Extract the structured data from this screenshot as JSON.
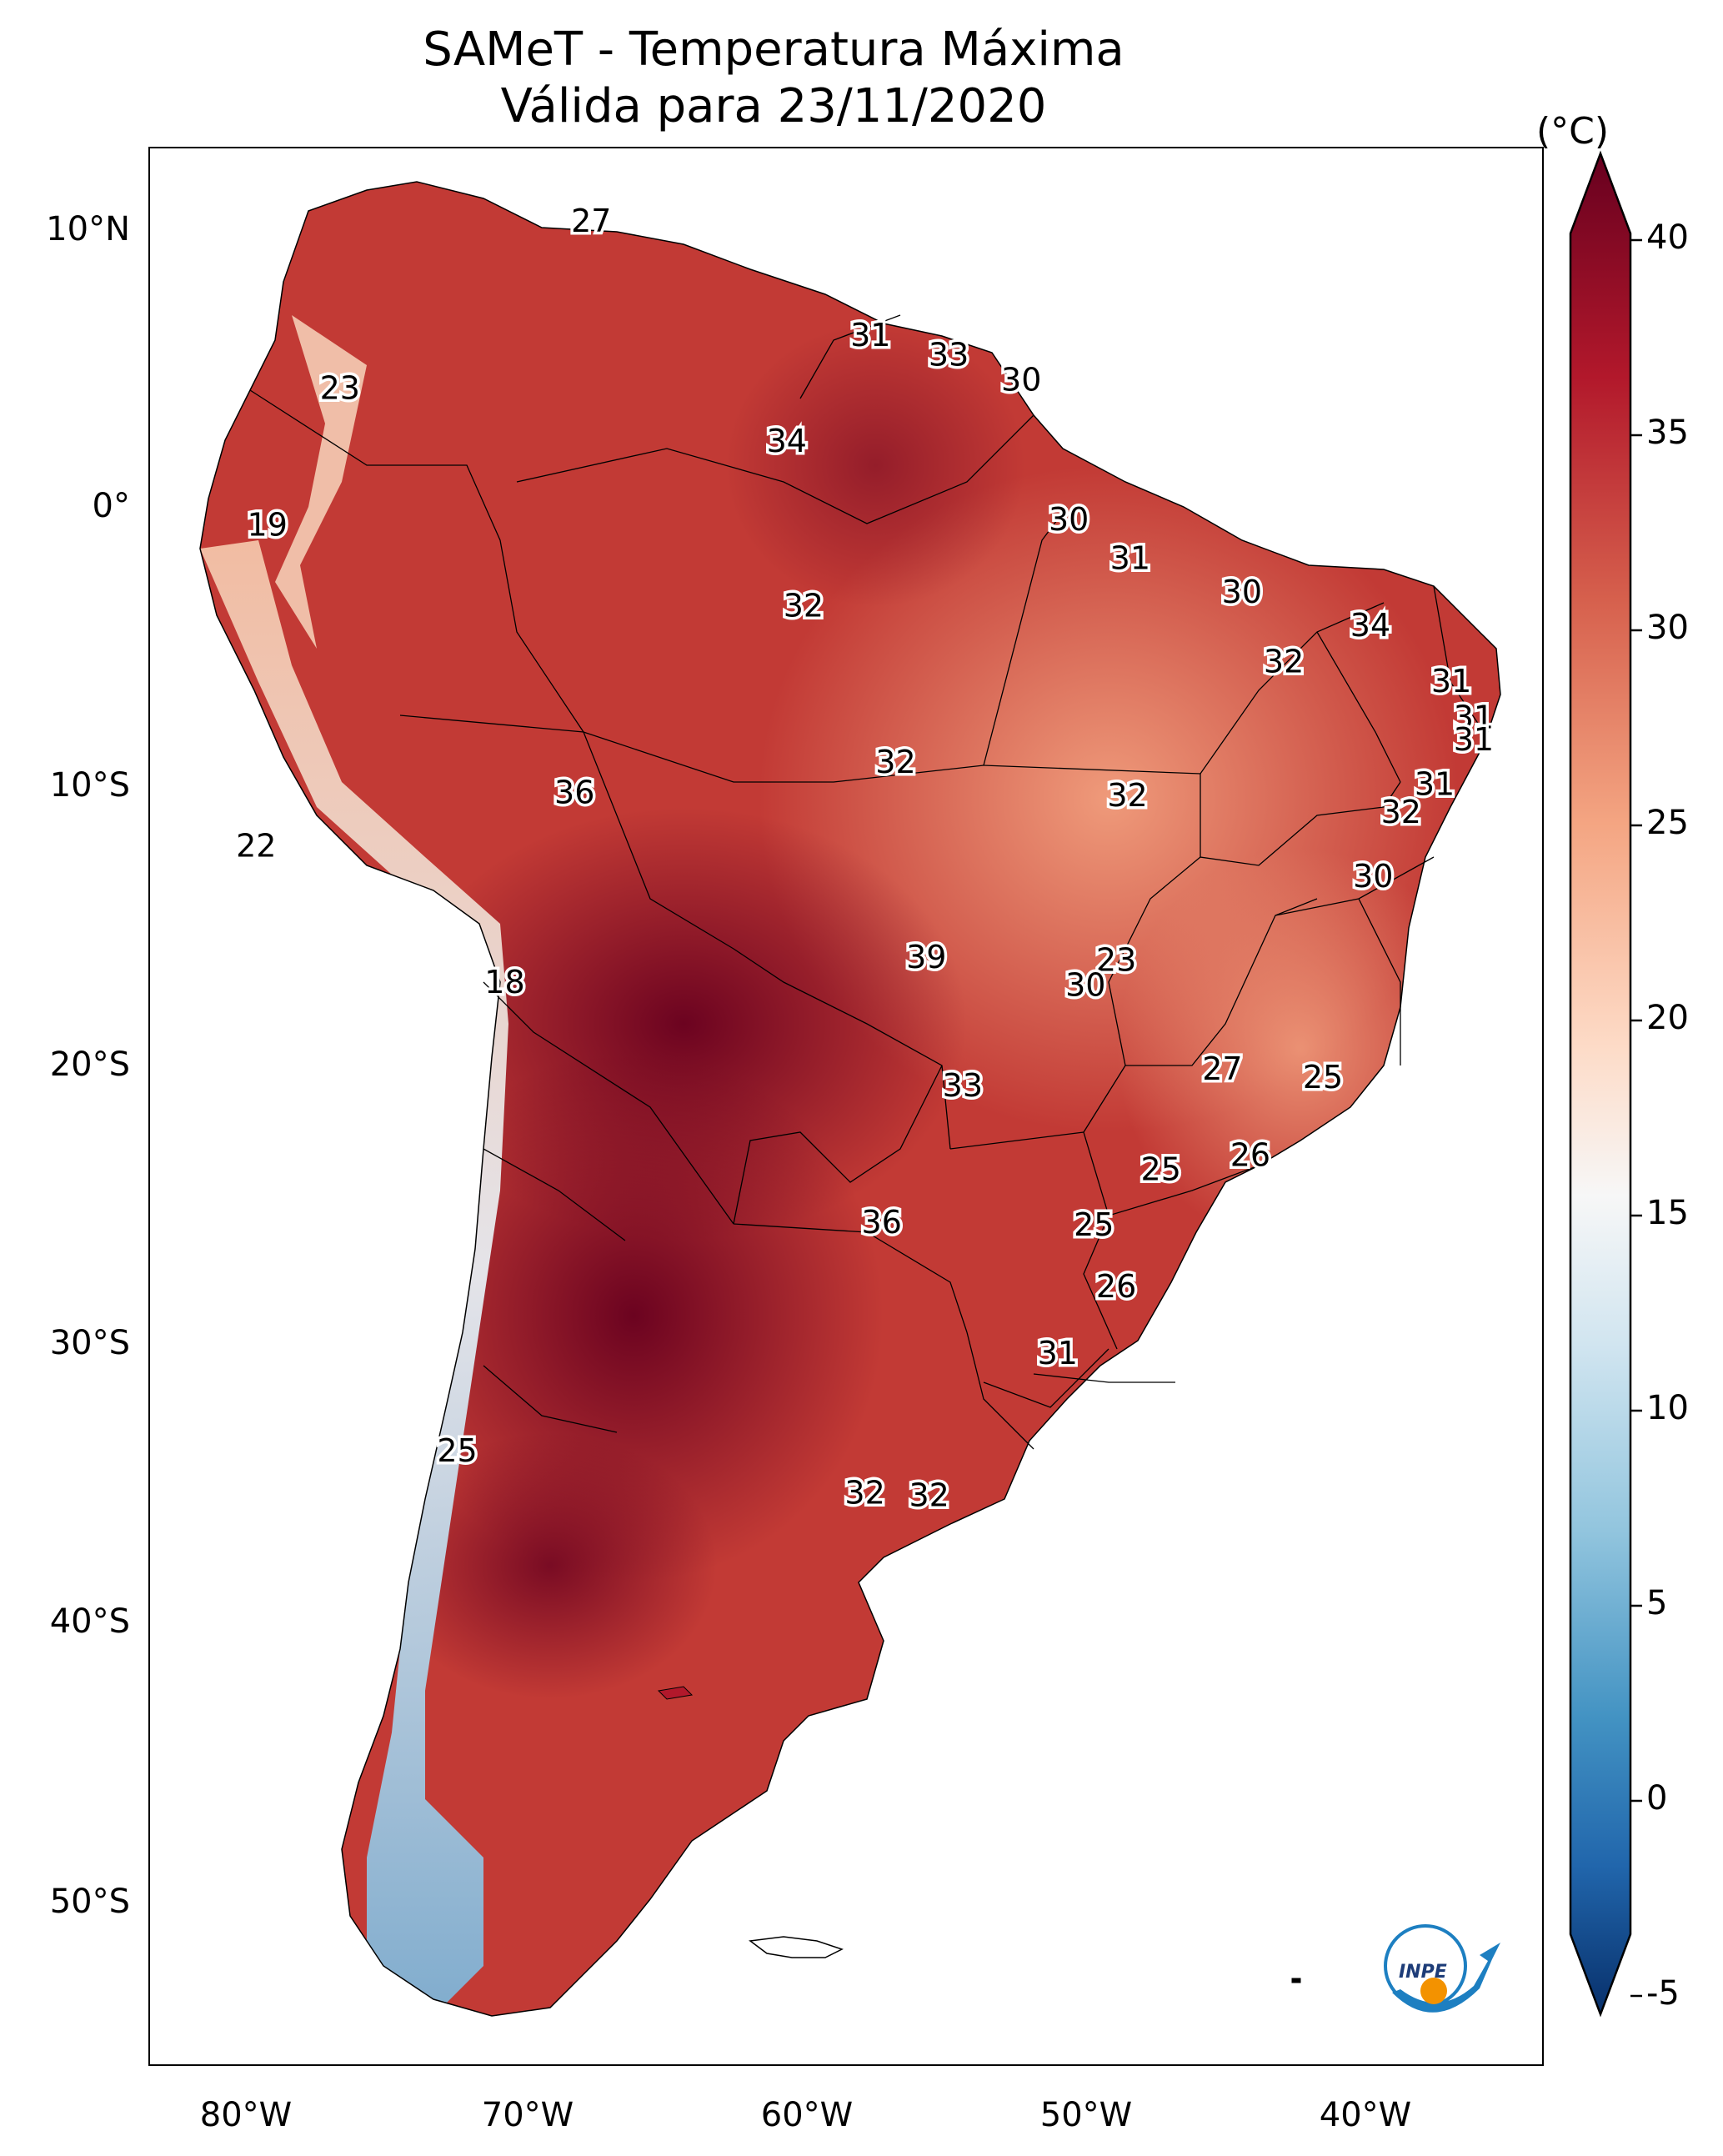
{
  "title": {
    "line1": "SAMeT - Temperatura Máxima",
    "line2": "Válida para 23/11/2020"
  },
  "colorbar": {
    "unit": "(°C)",
    "ticks": [
      "40",
      "35",
      "30",
      "25",
      "20",
      "15",
      "10",
      "5",
      "0",
      "-5"
    ],
    "range": [
      -5,
      40
    ],
    "colors": [
      "#08306b",
      "#2166ac",
      "#4393c3",
      "#92c5de",
      "#d1e5f0",
      "#f7f7f7",
      "#fddbc7",
      "#f4a582",
      "#d6604d",
      "#b2182b",
      "#67001f"
    ]
  },
  "axes": {
    "lat_labels": [
      "10°N",
      "0°",
      "10°S",
      "20°S",
      "30°S",
      "40°S",
      "50°S"
    ],
    "lon_labels": [
      "80°W",
      "70°W",
      "60°W",
      "50°W",
      "40°W"
    ]
  },
  "chart_data": {
    "type": "heatmap",
    "title": "SAMeT - Temperatura Máxima Válida para 23/11/2020",
    "variable": "Temperatura Máxima",
    "unit": "°C",
    "valid_date": "23/11/2020",
    "colorbar_range": [
      -5,
      40
    ],
    "lon_range": [
      -83,
      -33
    ],
    "lat_range": [
      -56,
      13
    ],
    "point_labels": [
      {
        "text": "27",
        "lon": -67.2,
        "lat": 10.6
      },
      {
        "text": "23",
        "lon": -76.2,
        "lat": 4.6
      },
      {
        "text": "31",
        "lon": -57.2,
        "lat": 6.5
      },
      {
        "text": "33",
        "lon": -54.4,
        "lat": 5.8
      },
      {
        "text": "30",
        "lon": -51.8,
        "lat": 4.9
      },
      {
        "text": "34",
        "lon": -60.2,
        "lat": 2.7
      },
      {
        "text": "19",
        "lon": -78.8,
        "lat": -0.3
      },
      {
        "text": "30",
        "lon": -50.1,
        "lat": -0.1
      },
      {
        "text": "31",
        "lon": -47.9,
        "lat": -1.5
      },
      {
        "text": "30",
        "lon": -43.9,
        "lat": -2.7
      },
      {
        "text": "34",
        "lon": -39.3,
        "lat": -3.9
      },
      {
        "text": "32",
        "lon": -59.6,
        "lat": -3.2
      },
      {
        "text": "32",
        "lon": -42.4,
        "lat": -5.2
      },
      {
        "text": "31",
        "lon": -36.4,
        "lat": -5.9
      },
      {
        "text": "31",
        "lon": -35.6,
        "lat": -7.2
      },
      {
        "text": "31",
        "lon": -35.6,
        "lat": -8.0
      },
      {
        "text": "32",
        "lon": -56.3,
        "lat": -8.8
      },
      {
        "text": "36",
        "lon": -67.8,
        "lat": -9.9
      },
      {
        "text": "32",
        "lon": -48.0,
        "lat": -10.0
      },
      {
        "text": "31",
        "lon": -37.0,
        "lat": -9.6
      },
      {
        "text": "32",
        "lon": -38.2,
        "lat": -10.6
      },
      {
        "text": "22",
        "lon": -79.2,
        "lat": -11.8
      },
      {
        "text": "30",
        "lon": -39.2,
        "lat": -12.9
      },
      {
        "text": "39",
        "lon": -55.2,
        "lat": -15.8
      },
      {
        "text": "23",
        "lon": -48.4,
        "lat": -15.9
      },
      {
        "text": "30",
        "lon": -49.5,
        "lat": -16.8
      },
      {
        "text": "18",
        "lon": -70.3,
        "lat": -16.7
      },
      {
        "text": "27",
        "lon": -44.6,
        "lat": -19.8
      },
      {
        "text": "25",
        "lon": -41.0,
        "lat": -20.1
      },
      {
        "text": "33",
        "lon": -53.9,
        "lat": -20.4
      },
      {
        "text": "26",
        "lon": -43.6,
        "lat": -22.9
      },
      {
        "text": "25",
        "lon": -46.8,
        "lat": -23.4
      },
      {
        "text": "36",
        "lon": -56.8,
        "lat": -25.3
      },
      {
        "text": "25",
        "lon": -49.2,
        "lat": -25.4
      },
      {
        "text": "26",
        "lon": -48.4,
        "lat": -27.6
      },
      {
        "text": "31",
        "lon": -50.5,
        "lat": -30.0
      },
      {
        "text": "25",
        "lon": -72.0,
        "lat": -33.5
      },
      {
        "text": "32",
        "lon": -57.4,
        "lat": -35.0
      },
      {
        "text": "32",
        "lon": -55.1,
        "lat": -35.1
      }
    ],
    "logo_text": "INPE"
  }
}
